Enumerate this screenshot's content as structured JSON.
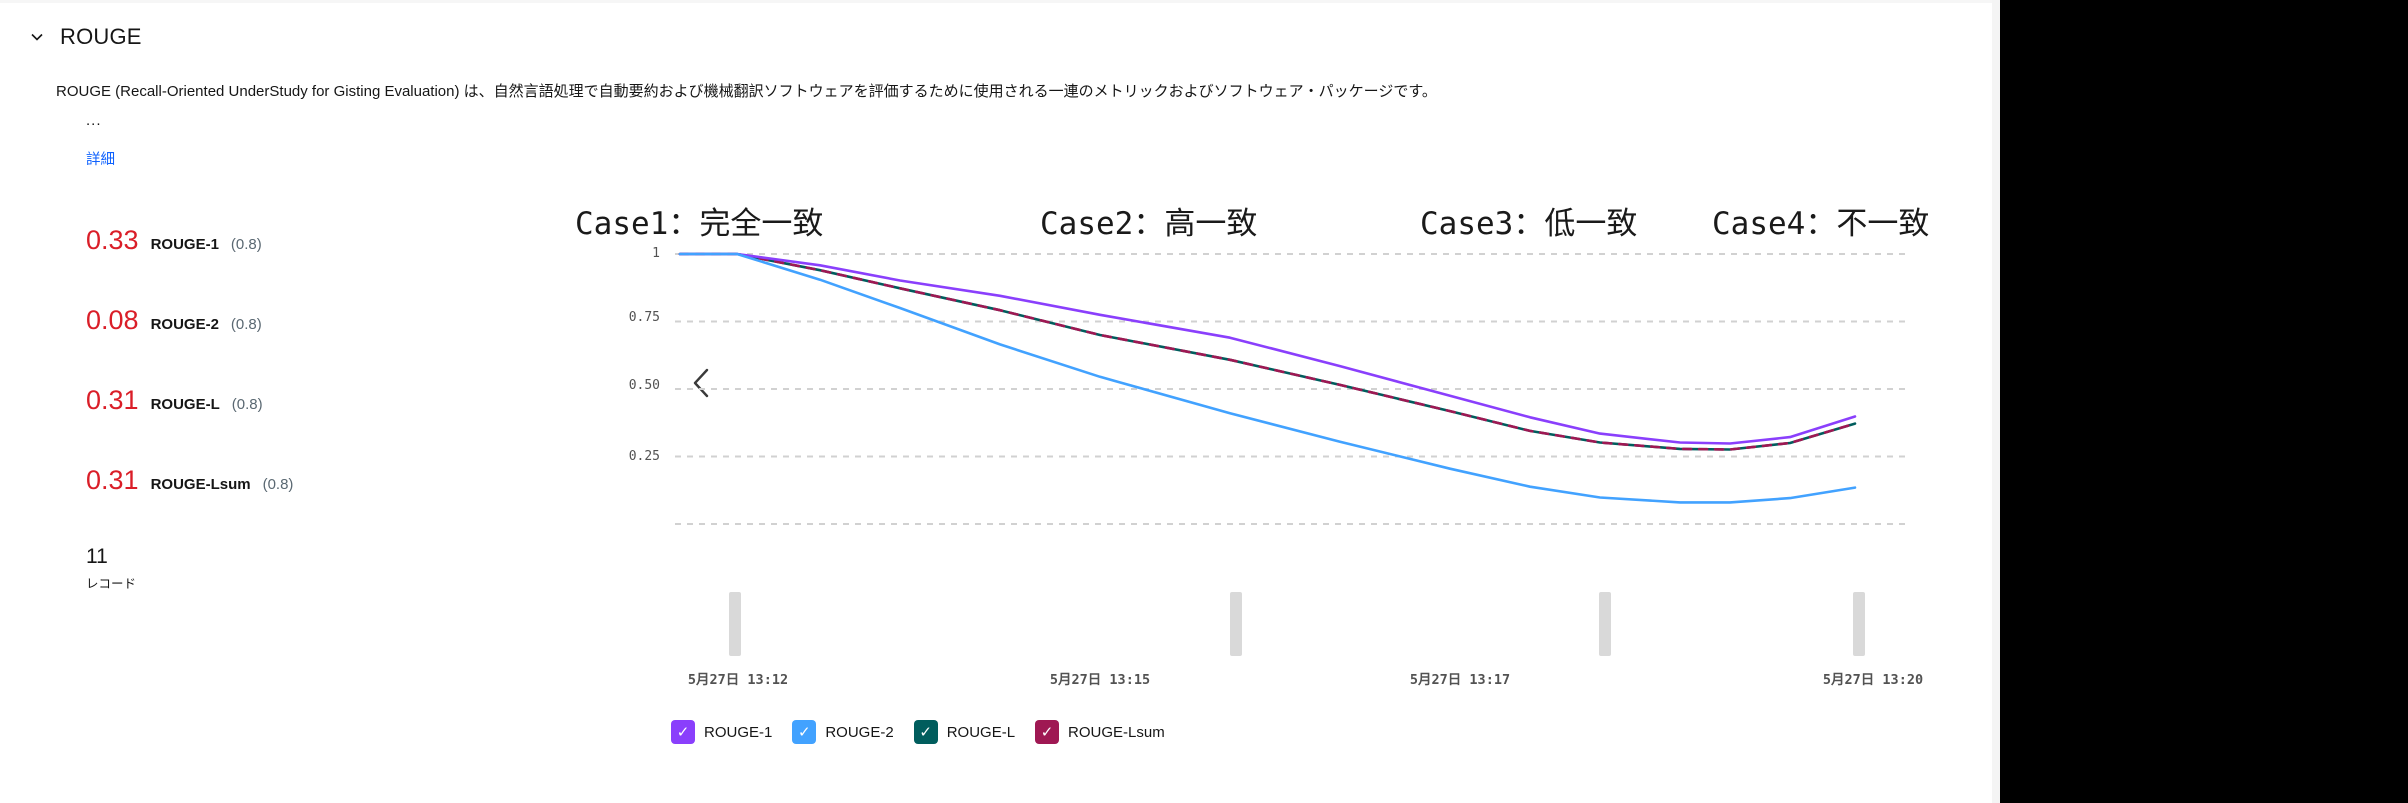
{
  "panel": {
    "title": "ROUGE",
    "description": "ROUGE (Recall-Oriented UnderStudy for Gisting Evaluation) は、自然言語処理で自動要約および機械翻訳ソフトウェアを評価するために使用される一連のメトリックおよびソフトウェア・パッケージです。",
    "ellipsis": "...",
    "details_link": "詳細"
  },
  "metrics": [
    {
      "value": "0.33",
      "name": "ROUGE-1",
      "threshold": "(0.8)"
    },
    {
      "value": "0.08",
      "name": "ROUGE-2",
      "threshold": "(0.8)"
    },
    {
      "value": "0.31",
      "name": "ROUGE-L",
      "threshold": "(0.8)"
    },
    {
      "value": "0.31",
      "name": "ROUGE-Lsum",
      "threshold": "(0.8)"
    }
  ],
  "records": {
    "count": "11",
    "label": "レコード"
  },
  "annotations": [
    "Case1：完全一致",
    "Case2：高一致",
    "Case3：低一致",
    "Case4：不一致"
  ],
  "chart_data": {
    "type": "line",
    "title": "",
    "xlabel": "",
    "ylabel": "",
    "ylim": [
      0,
      1
    ],
    "grid": "dashed-horizontal",
    "legend_position": "bottom",
    "y_axis": {
      "tick_labels": [
        "1",
        "0.75",
        "0.50",
        "0.25"
      ],
      "tick_values": [
        1,
        0.75,
        0.5,
        0.25
      ]
    },
    "x_axis": {
      "tick_labels": [
        "5月27日 13:12",
        "5月27日 13:15",
        "5月27日 13:17",
        "5月27日 13:20"
      ]
    },
    "series": [
      {
        "name": "ROUGE-L",
        "color": "#005d5d",
        "dash": false,
        "points": [
          [
            680,
            1
          ],
          [
            737,
            1
          ],
          [
            820,
            0.94
          ],
          [
            900,
            0.873
          ],
          [
            1000,
            0.792
          ],
          [
            1100,
            0.7
          ],
          [
            1230,
            0.608
          ],
          [
            1340,
            0.515
          ],
          [
            1450,
            0.418
          ],
          [
            1530,
            0.345
          ],
          [
            1600,
            0.302
          ],
          [
            1680,
            0.278
          ],
          [
            1730,
            0.276
          ],
          [
            1790,
            0.3
          ],
          [
            1855,
            0.372
          ]
        ]
      },
      {
        "name": "ROUGE-Lsum",
        "color": "#9f1853",
        "dash": true,
        "points": [
          [
            680,
            1
          ],
          [
            737,
            1
          ],
          [
            820,
            0.94
          ],
          [
            900,
            0.873
          ],
          [
            1000,
            0.792
          ],
          [
            1100,
            0.7
          ],
          [
            1230,
            0.608
          ],
          [
            1340,
            0.515
          ],
          [
            1450,
            0.418
          ],
          [
            1530,
            0.345
          ],
          [
            1600,
            0.302
          ],
          [
            1680,
            0.278
          ],
          [
            1730,
            0.276
          ],
          [
            1790,
            0.3
          ],
          [
            1855,
            0.372
          ]
        ]
      },
      {
        "name": "ROUGE-1",
        "color": "#8a3ffc",
        "dash": false,
        "points": [
          [
            680,
            1
          ],
          [
            737,
            1
          ],
          [
            820,
            0.958
          ],
          [
            900,
            0.902
          ],
          [
            1000,
            0.845
          ],
          [
            1100,
            0.775
          ],
          [
            1230,
            0.69
          ],
          [
            1340,
            0.585
          ],
          [
            1450,
            0.475
          ],
          [
            1530,
            0.395
          ],
          [
            1600,
            0.335
          ],
          [
            1680,
            0.302
          ],
          [
            1730,
            0.298
          ],
          [
            1790,
            0.322
          ],
          [
            1855,
            0.398
          ]
        ]
      },
      {
        "name": "ROUGE-2",
        "color": "#42a2ff",
        "dash": false,
        "points": [
          [
            680,
            1
          ],
          [
            737,
            1
          ],
          [
            820,
            0.905
          ],
          [
            900,
            0.8
          ],
          [
            1000,
            0.665
          ],
          [
            1100,
            0.545
          ],
          [
            1230,
            0.41
          ],
          [
            1340,
            0.305
          ],
          [
            1450,
            0.205
          ],
          [
            1530,
            0.138
          ],
          [
            1600,
            0.098
          ],
          [
            1680,
            0.08
          ],
          [
            1730,
            0.08
          ],
          [
            1790,
            0.096
          ],
          [
            1855,
            0.135
          ]
        ]
      }
    ],
    "legend": [
      {
        "label": "ROUGE-1",
        "color": "#8a3ffc"
      },
      {
        "label": "ROUGE-2",
        "color": "#42a2ff"
      },
      {
        "label": "ROUGE-L",
        "color": "#005d5d"
      },
      {
        "label": "ROUGE-Lsum",
        "color": "#9f1853"
      }
    ]
  },
  "colors": {
    "metric_value_red": "#da1e28",
    "link_blue": "#0f62fe",
    "text_dark": "#161616",
    "text_gray": "#525252",
    "gridline": "#d1d1d1",
    "record_bar": "#d9d9d9"
  },
  "icons": {
    "collapse": "chevron-down",
    "carousel_prev": "chevron-left",
    "legend_check": "✓"
  }
}
